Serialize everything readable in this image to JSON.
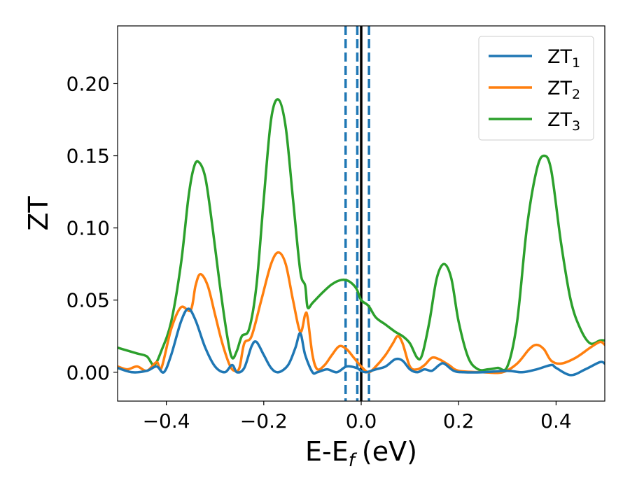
{
  "chart_data": {
    "type": "line",
    "title": "",
    "xlabel": "E-E",
    "xlabel_sub": "f",
    "xlabel_unit": "(eV)",
    "ylabel": "ZT",
    "xlim": [
      -0.5,
      0.5
    ],
    "ylim": [
      -0.02,
      0.24
    ],
    "x_ticks": [
      -0.4,
      -0.2,
      0.0,
      0.2,
      0.4
    ],
    "x_tick_labels": [
      "−0.4",
      "−0.2",
      "0.0",
      "0.2",
      "0.4"
    ],
    "y_ticks": [
      0.0,
      0.05,
      0.1,
      0.15,
      0.2
    ],
    "y_tick_labels": [
      "0.00",
      "0.05",
      "0.10",
      "0.15",
      "0.20"
    ],
    "grid": false,
    "legend_position": "top-right",
    "series": [
      {
        "name": "ZT",
        "name_sub": "1",
        "color": "#1f77b4",
        "points": [
          [
            -0.5,
            0.003
          ],
          [
            -0.47,
            0.0
          ],
          [
            -0.44,
            0.001
          ],
          [
            -0.42,
            0.004
          ],
          [
            -0.405,
            0.0
          ],
          [
            -0.39,
            0.012
          ],
          [
            -0.37,
            0.035
          ],
          [
            -0.355,
            0.044
          ],
          [
            -0.34,
            0.036
          ],
          [
            -0.32,
            0.017
          ],
          [
            -0.3,
            0.004
          ],
          [
            -0.28,
            0.0
          ],
          [
            -0.265,
            0.005
          ],
          [
            -0.255,
            0.0
          ],
          [
            -0.24,
            0.003
          ],
          [
            -0.225,
            0.018
          ],
          [
            -0.215,
            0.021
          ],
          [
            -0.2,
            0.012
          ],
          [
            -0.185,
            0.003
          ],
          [
            -0.17,
            0.0
          ],
          [
            -0.15,
            0.005
          ],
          [
            -0.135,
            0.017
          ],
          [
            -0.125,
            0.027
          ],
          [
            -0.115,
            0.012
          ],
          [
            -0.1,
            0.0
          ],
          [
            -0.09,
            0.0
          ],
          [
            -0.07,
            0.002
          ],
          [
            -0.05,
            0.0
          ],
          [
            -0.03,
            0.004
          ],
          [
            -0.01,
            0.003
          ],
          [
            0.0,
            0.001
          ],
          [
            0.01,
            0.0
          ],
          [
            0.03,
            0.002
          ],
          [
            0.05,
            0.004
          ],
          [
            0.07,
            0.009
          ],
          [
            0.085,
            0.008
          ],
          [
            0.1,
            0.002
          ],
          [
            0.115,
            0.0
          ],
          [
            0.13,
            0.002
          ],
          [
            0.145,
            0.001
          ],
          [
            0.16,
            0.005
          ],
          [
            0.17,
            0.006
          ],
          [
            0.19,
            0.001
          ],
          [
            0.21,
            0.0
          ],
          [
            0.25,
            0.0
          ],
          [
            0.3,
            0.001
          ],
          [
            0.33,
            0.0
          ],
          [
            0.36,
            0.002
          ],
          [
            0.39,
            0.005
          ],
          [
            0.4,
            0.003
          ],
          [
            0.43,
            -0.002
          ],
          [
            0.46,
            0.002
          ],
          [
            0.49,
            0.007
          ],
          [
            0.5,
            0.006
          ]
        ]
      },
      {
        "name": "ZT",
        "name_sub": "2",
        "color": "#ff7f0e",
        "points": [
          [
            -0.5,
            0.004
          ],
          [
            -0.48,
            0.002
          ],
          [
            -0.46,
            0.004
          ],
          [
            -0.44,
            0.001
          ],
          [
            -0.42,
            0.007
          ],
          [
            -0.41,
            0.003
          ],
          [
            -0.39,
            0.03
          ],
          [
            -0.37,
            0.045
          ],
          [
            -0.35,
            0.043
          ],
          [
            -0.34,
            0.06
          ],
          [
            -0.33,
            0.068
          ],
          [
            -0.315,
            0.06
          ],
          [
            -0.3,
            0.04
          ],
          [
            -0.285,
            0.02
          ],
          [
            -0.27,
            0.005
          ],
          [
            -0.26,
            0.001
          ],
          [
            -0.25,
            0.003
          ],
          [
            -0.24,
            0.02
          ],
          [
            -0.225,
            0.025
          ],
          [
            -0.205,
            0.05
          ],
          [
            -0.185,
            0.075
          ],
          [
            -0.17,
            0.083
          ],
          [
            -0.155,
            0.075
          ],
          [
            -0.14,
            0.05
          ],
          [
            -0.125,
            0.028
          ],
          [
            -0.115,
            0.04
          ],
          [
            -0.11,
            0.038
          ],
          [
            -0.1,
            0.012
          ],
          [
            -0.09,
            0.002
          ],
          [
            -0.075,
            0.005
          ],
          [
            -0.06,
            0.012
          ],
          [
            -0.045,
            0.018
          ],
          [
            -0.03,
            0.016
          ],
          [
            -0.015,
            0.01
          ],
          [
            0.0,
            0.004
          ],
          [
            0.015,
            0.0
          ],
          [
            0.03,
            0.004
          ],
          [
            0.05,
            0.012
          ],
          [
            0.065,
            0.02
          ],
          [
            0.075,
            0.025
          ],
          [
            0.085,
            0.02
          ],
          [
            0.1,
            0.004
          ],
          [
            0.115,
            0.002
          ],
          [
            0.13,
            0.005
          ],
          [
            0.145,
            0.01
          ],
          [
            0.16,
            0.009
          ],
          [
            0.18,
            0.005
          ],
          [
            0.2,
            0.001
          ],
          [
            0.25,
            0.0
          ],
          [
            0.29,
            0.0
          ],
          [
            0.32,
            0.006
          ],
          [
            0.345,
            0.016
          ],
          [
            0.36,
            0.019
          ],
          [
            0.375,
            0.016
          ],
          [
            0.39,
            0.008
          ],
          [
            0.41,
            0.006
          ],
          [
            0.44,
            0.01
          ],
          [
            0.47,
            0.017
          ],
          [
            0.49,
            0.021
          ],
          [
            0.5,
            0.019
          ]
        ]
      },
      {
        "name": "ZT",
        "name_sub": "3",
        "color": "#2ca02c",
        "points": [
          [
            -0.5,
            0.017
          ],
          [
            -0.48,
            0.015
          ],
          [
            -0.46,
            0.013
          ],
          [
            -0.44,
            0.011
          ],
          [
            -0.425,
            0.005
          ],
          [
            -0.41,
            0.015
          ],
          [
            -0.39,
            0.035
          ],
          [
            -0.37,
            0.075
          ],
          [
            -0.355,
            0.12
          ],
          [
            -0.345,
            0.14
          ],
          [
            -0.335,
            0.146
          ],
          [
            -0.32,
            0.135
          ],
          [
            -0.305,
            0.1
          ],
          [
            -0.29,
            0.06
          ],
          [
            -0.275,
            0.025
          ],
          [
            -0.265,
            0.01
          ],
          [
            -0.255,
            0.015
          ],
          [
            -0.245,
            0.025
          ],
          [
            -0.23,
            0.03
          ],
          [
            -0.215,
            0.06
          ],
          [
            -0.2,
            0.12
          ],
          [
            -0.185,
            0.175
          ],
          [
            -0.17,
            0.189
          ],
          [
            -0.155,
            0.17
          ],
          [
            -0.14,
            0.12
          ],
          [
            -0.125,
            0.07
          ],
          [
            -0.115,
            0.06
          ],
          [
            -0.11,
            0.045
          ],
          [
            -0.1,
            0.048
          ],
          [
            -0.08,
            0.055
          ],
          [
            -0.06,
            0.061
          ],
          [
            -0.04,
            0.064
          ],
          [
            -0.025,
            0.063
          ],
          [
            -0.01,
            0.058
          ],
          [
            0.0,
            0.05
          ],
          [
            0.015,
            0.046
          ],
          [
            0.03,
            0.038
          ],
          [
            0.05,
            0.033
          ],
          [
            0.07,
            0.028
          ],
          [
            0.085,
            0.025
          ],
          [
            0.1,
            0.02
          ],
          [
            0.115,
            0.01
          ],
          [
            0.125,
            0.012
          ],
          [
            0.14,
            0.035
          ],
          [
            0.155,
            0.065
          ],
          [
            0.17,
            0.075
          ],
          [
            0.185,
            0.065
          ],
          [
            0.2,
            0.035
          ],
          [
            0.22,
            0.01
          ],
          [
            0.24,
            0.002
          ],
          [
            0.26,
            0.002
          ],
          [
            0.28,
            0.003
          ],
          [
            0.3,
            0.004
          ],
          [
            0.32,
            0.035
          ],
          [
            0.34,
            0.1
          ],
          [
            0.36,
            0.14
          ],
          [
            0.375,
            0.15
          ],
          [
            0.39,
            0.14
          ],
          [
            0.41,
            0.09
          ],
          [
            0.43,
            0.05
          ],
          [
            0.45,
            0.03
          ],
          [
            0.47,
            0.02
          ],
          [
            0.49,
            0.022
          ],
          [
            0.5,
            0.022
          ]
        ]
      }
    ],
    "vertical_lines": [
      {
        "x": -0.032,
        "style": "dashed",
        "color": "#1f77b4"
      },
      {
        "x": -0.008,
        "style": "dashed",
        "color": "#1f77b4"
      },
      {
        "x": 0.0,
        "style": "solid",
        "color": "#000000"
      },
      {
        "x": 0.016,
        "style": "dashed",
        "color": "#1f77b4"
      }
    ]
  }
}
